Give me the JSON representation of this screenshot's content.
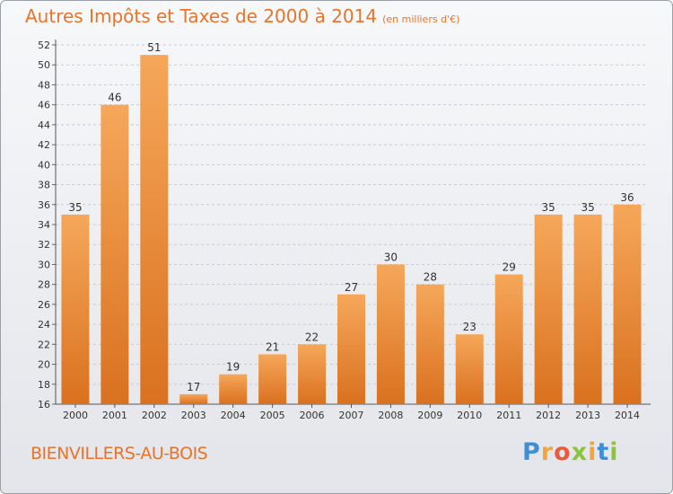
{
  "title": "Autres Impôts et Taxes de 2000 à 2014",
  "unit": "(en milliers d'€)",
  "town": "BIENVILLERS-AU-BOIS",
  "logo": {
    "letters": [
      "P",
      "r",
      "o",
      "x",
      "i",
      "t",
      "i"
    ],
    "colors": [
      "#3d8fd6",
      "#f2a53a",
      "#e95b3b",
      "#8cc43f",
      "#f2a53a",
      "#3d8fd6",
      "#8cc43f"
    ]
  },
  "colors": {
    "accent": "#e8742a",
    "bar_top": "#f6a75a",
    "bar_bottom": "#d9711f"
  },
  "chart_data": {
    "type": "bar",
    "categories": [
      "2000",
      "2001",
      "2002",
      "2003",
      "2004",
      "2005",
      "2006",
      "2007",
      "2008",
      "2009",
      "2010",
      "2011",
      "2012",
      "2013",
      "2014"
    ],
    "values": [
      35,
      46,
      51,
      17,
      19,
      21,
      22,
      27,
      30,
      28,
      23,
      29,
      35,
      35,
      36
    ],
    "ylim": [
      16,
      52
    ],
    "yticks": [
      16,
      18,
      20,
      22,
      24,
      26,
      28,
      30,
      32,
      34,
      36,
      38,
      40,
      42,
      44,
      46,
      48,
      50,
      52
    ],
    "grid": true
  }
}
